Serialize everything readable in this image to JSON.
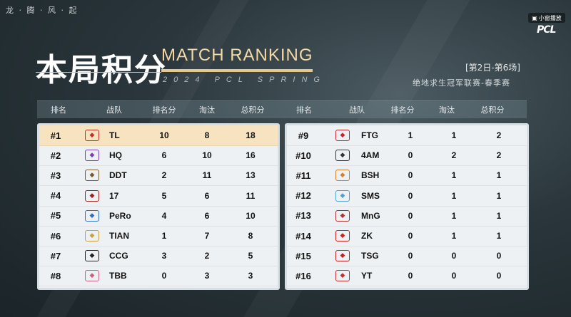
{
  "top_line": "龙 · 腾 · 风 · 起",
  "overlay_button": "小窗播放",
  "brand": "PCL",
  "title_cn": "本局积分",
  "title_en": "MATCH RANKING",
  "subtitle_en": "2024 PCL SPRING",
  "round": "[第2日-第6场]",
  "league": "绝地求生冠军联赛-春季赛",
  "headers": [
    "排名",
    "战队",
    "排名分",
    "淘汰",
    "总积分"
  ],
  "left_rows": [
    {
      "rank": "#1",
      "team": "TL",
      "place": "10",
      "elim": "8",
      "total": "18",
      "logo_color": "#c0312c"
    },
    {
      "rank": "#2",
      "team": "HQ",
      "place": "6",
      "elim": "10",
      "total": "16",
      "logo_color": "#7b3fb8"
    },
    {
      "rank": "#3",
      "team": "DDT",
      "place": "2",
      "elim": "11",
      "total": "13",
      "logo_color": "#7a5a30"
    },
    {
      "rank": "#4",
      "team": "17",
      "place": "5",
      "elim": "6",
      "total": "11",
      "logo_color": "#a22020"
    },
    {
      "rank": "#5",
      "team": "PeRo",
      "place": "4",
      "elim": "6",
      "total": "10",
      "logo_color": "#3270c0"
    },
    {
      "rank": "#6",
      "team": "TIAN",
      "place": "1",
      "elim": "7",
      "total": "8",
      "logo_color": "#c9a040"
    },
    {
      "rank": "#7",
      "team": "CCG",
      "place": "3",
      "elim": "2",
      "total": "5",
      "logo_color": "#222222"
    },
    {
      "rank": "#8",
      "team": "TBB",
      "place": "0",
      "elim": "3",
      "total": "3",
      "logo_color": "#d06080"
    }
  ],
  "right_rows": [
    {
      "rank": "#9",
      "team": "FTG",
      "place": "1",
      "elim": "1",
      "total": "2",
      "logo_color": "#c02830"
    },
    {
      "rank": "#10",
      "team": "4AM",
      "place": "0",
      "elim": "2",
      "total": "2",
      "logo_color": "#333333"
    },
    {
      "rank": "#11",
      "team": "BSH",
      "place": "0",
      "elim": "1",
      "total": "1",
      "logo_color": "#d08030"
    },
    {
      "rank": "#12",
      "team": "SMS",
      "place": "0",
      "elim": "1",
      "total": "1",
      "logo_color": "#50a0d0"
    },
    {
      "rank": "#13",
      "team": "MnG",
      "place": "0",
      "elim": "1",
      "total": "1",
      "logo_color": "#b03030"
    },
    {
      "rank": "#14",
      "team": "ZK",
      "place": "0",
      "elim": "1",
      "total": "1",
      "logo_color": "#d02020"
    },
    {
      "rank": "#15",
      "team": "TSG",
      "place": "0",
      "elim": "0",
      "total": "0",
      "logo_color": "#c02020"
    },
    {
      "rank": "#16",
      "team": "YT",
      "place": "0",
      "elim": "0",
      "total": "0",
      "logo_color": "#c03030"
    }
  ]
}
